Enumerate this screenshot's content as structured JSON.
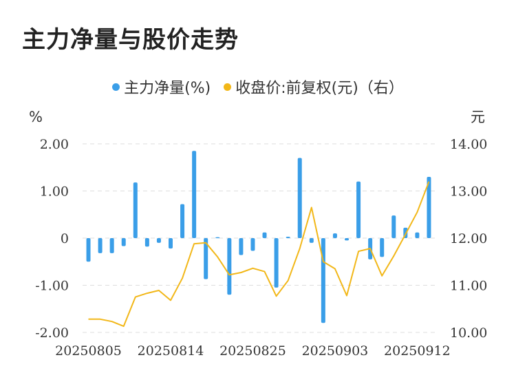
{
  "title": "主力净量与股价走势",
  "colors": {
    "bar": "#3a9ee8",
    "line": "#f2b718",
    "grid": "#dddddd",
    "text": "#333333"
  },
  "legend": [
    {
      "label": "主力净量(%)",
      "color": "#3a9ee8"
    },
    {
      "label": "收盘价:前复权(元)（右）",
      "color": "#f2b718"
    }
  ],
  "chart_data": {
    "type": "bar+line",
    "y_left": {
      "unit": "%",
      "range": [
        -2,
        2
      ],
      "ticks": [
        "2.00",
        "1.00",
        "0",
        "-1.00",
        "-2.00"
      ]
    },
    "y_right": {
      "unit": "元",
      "range": [
        10,
        14
      ],
      "ticks": [
        "14.00",
        "13.00",
        "12.00",
        "11.00",
        "10.00"
      ]
    },
    "x_tick_labels": [
      "20250805",
      "20250814",
      "20250825",
      "20250903",
      "20250912"
    ],
    "x_tick_indices": [
      0,
      7,
      14,
      21,
      28
    ],
    "legend_position": "top",
    "grid": true,
    "series": [
      {
        "name": "主力净量(%)",
        "type": "bar",
        "axis": "left",
        "values": [
          -0.5,
          -0.32,
          -0.32,
          -0.17,
          1.18,
          -0.18,
          -0.1,
          -0.22,
          0.72,
          1.85,
          -0.87,
          0.02,
          -1.2,
          -0.36,
          -0.27,
          0.12,
          -1.05,
          0.03,
          1.7,
          -0.1,
          -1.8,
          0.1,
          -0.05,
          1.2,
          -0.45,
          -0.4,
          0.48,
          0.22,
          0.12,
          1.3
        ]
      },
      {
        "name": "收盘价:前复权(元)（右）",
        "type": "line",
        "axis": "right",
        "values": [
          10.28,
          10.28,
          10.23,
          10.13,
          10.75,
          10.83,
          10.89,
          10.68,
          11.15,
          11.88,
          11.9,
          11.6,
          11.22,
          11.27,
          11.36,
          11.29,
          10.77,
          11.1,
          11.78,
          12.65,
          11.5,
          11.35,
          10.78,
          11.72,
          11.78,
          11.2,
          11.62,
          12.08,
          12.55,
          13.2
        ]
      }
    ]
  }
}
